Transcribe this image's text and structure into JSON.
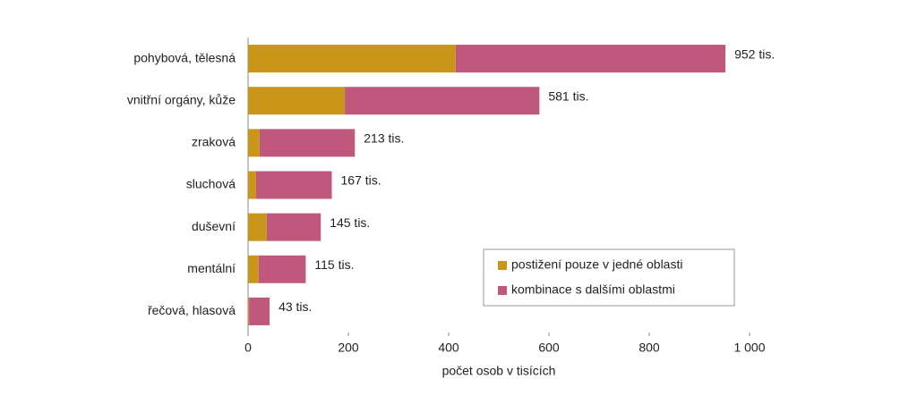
{
  "chart_data": {
    "type": "stacked-bar-horizontal",
    "categories": [
      "pohybová, tělesná",
      "vnitřní orgány, kůže",
      "zraková",
      "sluchová",
      "duševní",
      "mentální",
      "řečová, hlasová"
    ],
    "series": [
      {
        "name": "postižení pouze v jedné oblasti",
        "color": "#c9961a",
        "values": [
          414,
          193,
          23,
          16,
          37,
          21,
          2
        ]
      },
      {
        "name": "kombinace s dalšími oblastmi",
        "color": "#c0587e",
        "values": [
          538,
          388,
          190,
          151,
          108,
          94,
          41
        ]
      }
    ],
    "total_labels": [
      "952 tis.",
      "581 tis.",
      "213 tis.",
      "167 tis.",
      "145 tis.",
      "115 tis.",
      "43 tis."
    ],
    "xlabel": "počet osob v tisících",
    "xlim": [
      0,
      1000
    ],
    "xticks": [
      0,
      200,
      400,
      600,
      800,
      {
        "value": 1000,
        "label": "1 000"
      }
    ],
    "legend": "lower right"
  }
}
